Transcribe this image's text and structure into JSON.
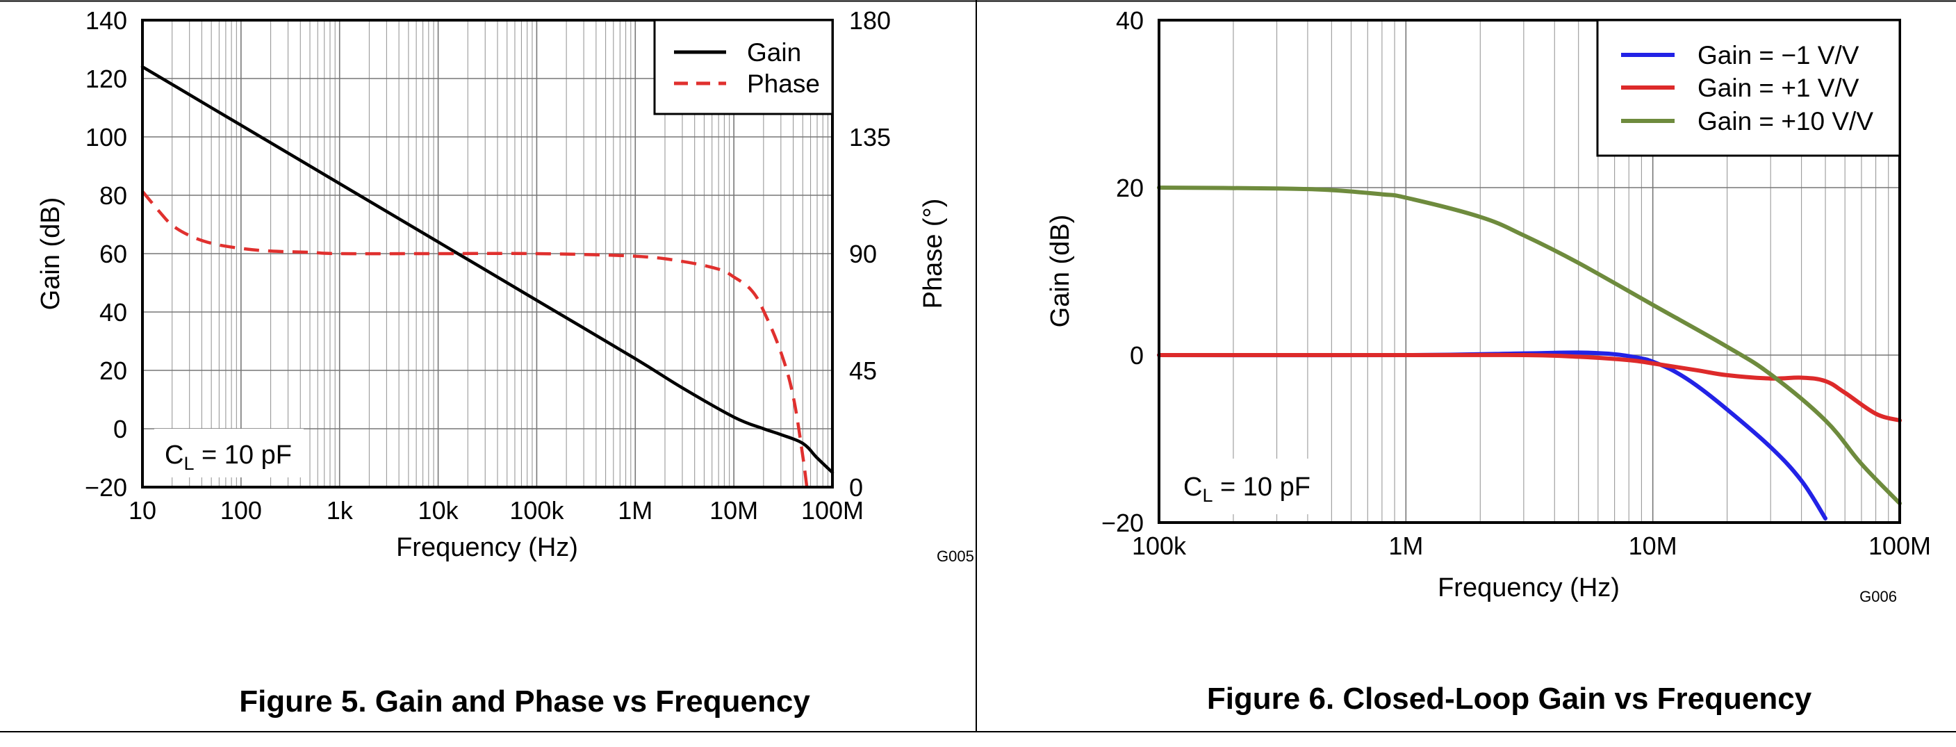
{
  "chart_data": [
    {
      "type": "line",
      "id": "fig5",
      "caption": "Figure 5. Gain and Phase vs Frequency",
      "code": "G005",
      "xlabel": "Frequency (Hz)",
      "ylabel": "Gain (dB)",
      "y2label": "Phase (°)",
      "xscale": "log",
      "xlim": [
        10,
        100000000
      ],
      "ylim": [
        -20,
        140
      ],
      "y2lim": [
        0,
        180
      ],
      "x_ticks": [
        {
          "value": 10,
          "label": "10"
        },
        {
          "value": 100,
          "label": "100"
        },
        {
          "value": 1000,
          "label": "1k"
        },
        {
          "value": 10000,
          "label": "10k"
        },
        {
          "value": 100000,
          "label": "100k"
        },
        {
          "value": 1000000,
          "label": "1M"
        },
        {
          "value": 10000000,
          "label": "10M"
        },
        {
          "value": 100000000,
          "label": "100M"
        }
      ],
      "y_ticks": [
        {
          "value": 140,
          "label": "140"
        },
        {
          "value": 120,
          "label": "120"
        },
        {
          "value": 100,
          "label": "100"
        },
        {
          "value": 80,
          "label": "80"
        },
        {
          "value": 60,
          "label": "60"
        },
        {
          "value": 40,
          "label": "40"
        },
        {
          "value": 20,
          "label": "20"
        },
        {
          "value": 0,
          "label": "0"
        },
        {
          "value": -20,
          "label": "−20"
        }
      ],
      "y2_ticks": [
        {
          "value": 180,
          "label": "180"
        },
        {
          "value": 135,
          "label": "135"
        },
        {
          "value": 90,
          "label": "90"
        },
        {
          "value": 45,
          "label": "45"
        },
        {
          "value": 0,
          "label": "0"
        }
      ],
      "annotation": {
        "main": "C",
        "sub": "L",
        "rest": " = 10 pF"
      },
      "legend_position": "top-right",
      "series": [
        {
          "name": "Gain",
          "axis": "left",
          "color": "#000000",
          "dash": "solid",
          "points": [
            [
              10,
              124
            ],
            [
              20,
              118
            ],
            [
              50,
              110
            ],
            [
              100,
              104
            ],
            [
              1000,
              84
            ],
            [
              10000,
              64
            ],
            [
              20000,
              58
            ],
            [
              100000,
              44
            ],
            [
              1000000,
              24
            ],
            [
              3000000,
              14
            ],
            [
              10000000,
              4
            ],
            [
              20000000,
              0
            ],
            [
              30000000,
              -2
            ],
            [
              50000000,
              -5
            ],
            [
              70000000,
              -10
            ],
            [
              100000000,
              -15
            ]
          ]
        },
        {
          "name": "Phase",
          "axis": "right",
          "color": "#e0302e",
          "dash": "dashed",
          "points": [
            [
              10,
              114
            ],
            [
              15,
              106
            ],
            [
              20,
              101
            ],
            [
              30,
              97
            ],
            [
              50,
              94
            ],
            [
              100,
              92
            ],
            [
              200,
              91
            ],
            [
              500,
              90.5
            ],
            [
              1000,
              90
            ],
            [
              10000,
              90
            ],
            [
              100000,
              90
            ],
            [
              1000000,
              89
            ],
            [
              3000000,
              87
            ],
            [
              7000000,
              84
            ],
            [
              10000000,
              81
            ],
            [
              15000000,
              76
            ],
            [
              20000000,
              68
            ],
            [
              30000000,
              52
            ],
            [
              40000000,
              35
            ],
            [
              50000000,
              12
            ],
            [
              55000000,
              0
            ]
          ]
        }
      ]
    },
    {
      "type": "line",
      "id": "fig6",
      "caption": "Figure 6. Closed-Loop Gain vs Frequency",
      "code": "G006",
      "xlabel": "Frequency (Hz)",
      "ylabel": "Gain (dB)",
      "xscale": "log",
      "xlim": [
        100000,
        100000000
      ],
      "ylim": [
        -20,
        40
      ],
      "x_ticks": [
        {
          "value": 100000,
          "label": "100k"
        },
        {
          "value": 1000000,
          "label": "1M"
        },
        {
          "value": 10000000,
          "label": "10M"
        },
        {
          "value": 100000000,
          "label": "100M"
        }
      ],
      "y_ticks": [
        {
          "value": 40,
          "label": "40"
        },
        {
          "value": 20,
          "label": "20"
        },
        {
          "value": 0,
          "label": "0"
        },
        {
          "value": -20,
          "label": "−20"
        }
      ],
      "annotation": {
        "main": "C",
        "sub": "L",
        "rest": " = 10 pF"
      },
      "legend_position": "top-right",
      "series": [
        {
          "name": "Gain = −1 V/V",
          "color": "#2222e6",
          "dash": "solid",
          "points": [
            [
              100000,
              0
            ],
            [
              1000000,
              0
            ],
            [
              3000000,
              0.2
            ],
            [
              5000000,
              0.3
            ],
            [
              7000000,
              0.1
            ],
            [
              9000000,
              -0.4
            ],
            [
              10000000,
              -0.8
            ],
            [
              12000000,
              -1.8
            ],
            [
              15000000,
              -3.6
            ],
            [
              20000000,
              -6.5
            ],
            [
              30000000,
              -11
            ],
            [
              40000000,
              -15
            ],
            [
              50000000,
              -19.5
            ]
          ]
        },
        {
          "name": "Gain = +1 V/V",
          "color": "#dd2a2a",
          "dash": "solid",
          "points": [
            [
              100000,
              0
            ],
            [
              1000000,
              0
            ],
            [
              3000000,
              0
            ],
            [
              5000000,
              -0.2
            ],
            [
              8000000,
              -0.6
            ],
            [
              10000000,
              -1
            ],
            [
              15000000,
              -1.8
            ],
            [
              20000000,
              -2.4
            ],
            [
              30000000,
              -2.8
            ],
            [
              40000000,
              -2.7
            ],
            [
              50000000,
              -3.1
            ],
            [
              60000000,
              -4.5
            ],
            [
              80000000,
              -7
            ],
            [
              100000000,
              -7.8
            ]
          ]
        },
        {
          "name": "Gain = +10 V/V",
          "color": "#6e8b3d",
          "dash": "solid",
          "points": [
            [
              100000,
              20
            ],
            [
              300000,
              19.9
            ],
            [
              500000,
              19.7
            ],
            [
              800000,
              19.2
            ],
            [
              1000000,
              18.8
            ],
            [
              2000000,
              16.5
            ],
            [
              3000000,
              14.3
            ],
            [
              5000000,
              11
            ],
            [
              10000000,
              6
            ],
            [
              20000000,
              1
            ],
            [
              30000000,
              -2.3
            ],
            [
              50000000,
              -7.8
            ],
            [
              70000000,
              -13
            ],
            [
              100000000,
              -17.7
            ]
          ]
        }
      ]
    }
  ]
}
